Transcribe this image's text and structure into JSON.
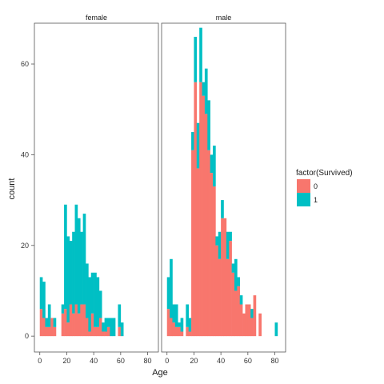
{
  "chart_data": {
    "type": "bar",
    "subtype": "faceted stacked histogram",
    "xlabel": "Age",
    "ylabel": "count",
    "bin_width": 2,
    "xlim": [
      -4,
      88
    ],
    "ylim": [
      -3.5,
      69
    ],
    "x_ticks": [
      0,
      20,
      40,
      60,
      80
    ],
    "y_ticks": [
      0,
      20,
      40,
      60
    ],
    "legend": {
      "title": "factor(Survived)",
      "position": "right",
      "entries": [
        {
          "label": "0",
          "color": "#F8766D"
        },
        {
          "label": "1",
          "color": "#00BFC4"
        }
      ]
    },
    "grid": false,
    "panels": [
      {
        "label": "female",
        "bin_starts": [
          0,
          2,
          4,
          6,
          8,
          10,
          12,
          14,
          16,
          18,
          20,
          22,
          24,
          26,
          28,
          30,
          32,
          34,
          36,
          38,
          40,
          42,
          44,
          46,
          48,
          50,
          52,
          54,
          56,
          58,
          60,
          62
        ],
        "series": [
          {
            "name": "0",
            "values": [
              6,
              4,
              2,
              2,
              4,
              2,
              0,
              0,
              5,
              6,
              3,
              7,
              5,
              7,
              5,
              7,
              7,
              4,
              1,
              5,
              2,
              2,
              4,
              1,
              1,
              2,
              0,
              0,
              0,
              2,
              0,
              0
            ]
          },
          {
            "name": "1",
            "values": [
              7,
              8,
              2,
              5,
              0,
              2,
              0,
              0,
              2,
              23,
              19,
              14,
              18,
              22,
              21,
              16,
              20,
              12,
              12,
              9,
              12,
              11,
              6,
              2,
              3,
              2,
              4,
              4,
              0,
              5,
              3,
              0
            ]
          }
        ]
      },
      {
        "label": "male",
        "bin_starts": [
          0,
          2,
          4,
          6,
          8,
          10,
          12,
          14,
          16,
          18,
          20,
          22,
          24,
          26,
          28,
          30,
          32,
          34,
          36,
          38,
          40,
          42,
          44,
          46,
          48,
          50,
          52,
          54,
          56,
          58,
          60,
          62,
          64,
          66,
          68,
          70,
          72,
          74,
          76,
          78,
          80
        ],
        "series": [
          {
            "name": "0",
            "values": [
              6,
              4,
              3,
              2,
              2,
              1,
              0,
              2,
              1,
              41,
              56,
              37,
              56,
              53,
              49,
              41,
              36,
              33,
              20,
              17,
              26,
              26,
              17,
              21,
              14,
              10,
              11,
              7,
              5,
              7,
              7,
              4,
              9,
              0,
              5,
              0,
              0,
              0,
              0,
              0,
              0
            ]
          },
          {
            "name": "1",
            "values": [
              7,
              13,
              4,
              5,
              1,
              3,
              0,
              5,
              3,
              4,
              10,
              10,
              12,
              3,
              10,
              11,
              4,
              9,
              2,
              6,
              4,
              0,
              6,
              2,
              2,
              7,
              2,
              2,
              0,
              0,
              0,
              2,
              0,
              0,
              0,
              0,
              0,
              0,
              0,
              0,
              3
            ]
          }
        ]
      }
    ]
  }
}
